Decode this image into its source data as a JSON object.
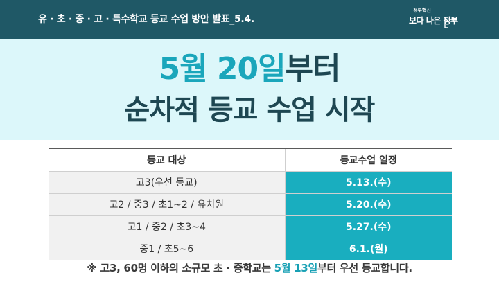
{
  "header": {
    "title": "유 · 초 · 중 · 고 · 특수학교 등교 수업 방안 발표_5.4.",
    "logo_top": "정부혁신",
    "logo_bottom": "보다 나은 정부"
  },
  "hero": {
    "line1_accent": "5월 20일",
    "line1_rest": "부터",
    "line2": "순차적 등교 수업 시작"
  },
  "table": {
    "headers": [
      "등교 대상",
      "등교수업 일정"
    ],
    "rows": [
      {
        "target": "고3(우선 등교)",
        "date": "5.13.(수)"
      },
      {
        "target": "고2 / 중3 / 초1~2 / 유치원",
        "date": "5.20.(수)"
      },
      {
        "target": "고1 / 중2 / 초3~4",
        "date": "5.27.(수)"
      },
      {
        "target": "중1 / 초5~6",
        "date": "6.1.(월)"
      }
    ]
  },
  "note": {
    "part1": "※ 고3, 60명 이하의 소규모 초 · 중학교는 ",
    "part2": "5월 13일",
    "part3": "부터 우선 등교합니다."
  }
}
